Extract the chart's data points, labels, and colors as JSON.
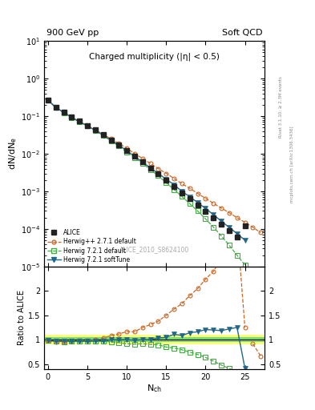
{
  "title_left": "900 GeV pp",
  "title_right": "Soft QCD",
  "main_title": "Charged multiplicity (η| < 0.5)",
  "main_title2": "Charged multiplicity (|η| < 0.5)",
  "ylabel_main": "dN/dNₑ",
  "ylabel_ratio": "Ratio to ALICE",
  "xlabel": "Nₙₕ",
  "watermark": "ALICE_2010_S8624100",
  "right_label": "Rivet 3.1.10; ≥ 2.3M events",
  "right_label2": "mcplots.cern.ch [arXiv:1306.3436]",
  "alice_x": [
    0,
    1,
    2,
    3,
    4,
    5,
    6,
    7,
    8,
    9,
    10,
    11,
    12,
    13,
    14,
    15,
    16,
    17,
    18,
    19,
    20,
    21,
    22,
    23,
    24,
    25
  ],
  "alice_y": [
    0.27,
    0.175,
    0.13,
    0.095,
    0.073,
    0.057,
    0.043,
    0.032,
    0.023,
    0.017,
    0.012,
    0.0086,
    0.006,
    0.0042,
    0.0029,
    0.002,
    0.00135,
    0.00092,
    0.00063,
    0.00043,
    0.00029,
    0.0002,
    0.000135,
    9e-05,
    6e-05,
    0.00012
  ],
  "hpp_x": [
    0,
    1,
    2,
    3,
    4,
    5,
    6,
    7,
    8,
    9,
    10,
    11,
    12,
    13,
    14,
    15,
    16,
    17,
    18,
    19,
    20,
    21,
    22,
    23,
    24,
    25,
    26,
    27
  ],
  "hpp_y": [
    0.265,
    0.168,
    0.125,
    0.092,
    0.072,
    0.056,
    0.043,
    0.033,
    0.025,
    0.019,
    0.014,
    0.01,
    0.0075,
    0.0055,
    0.004,
    0.003,
    0.0022,
    0.0016,
    0.0012,
    0.00088,
    0.00065,
    0.00048,
    0.00036,
    0.00027,
    0.0002,
    0.00015,
    0.00011,
    8e-05
  ],
  "h721_x": [
    0,
    1,
    2,
    3,
    4,
    5,
    6,
    7,
    8,
    9,
    10,
    11,
    12,
    13,
    14,
    15,
    16,
    17,
    18,
    19,
    20,
    21,
    22,
    23,
    24,
    25
  ],
  "h721_y": [
    0.265,
    0.17,
    0.125,
    0.092,
    0.071,
    0.055,
    0.042,
    0.031,
    0.022,
    0.016,
    0.011,
    0.0078,
    0.0055,
    0.0038,
    0.0026,
    0.0017,
    0.00112,
    0.00073,
    0.00047,
    0.0003,
    0.000185,
    0.000112,
    6.5e-05,
    3.7e-05,
    2e-05,
    1.1e-05
  ],
  "h721st_x": [
    0,
    1,
    2,
    3,
    4,
    5,
    6,
    7,
    8,
    9,
    10,
    11,
    12,
    13,
    14,
    15,
    16,
    17,
    18,
    19,
    20,
    21,
    22,
    23,
    24,
    25
  ],
  "h721st_y": [
    0.265,
    0.17,
    0.126,
    0.092,
    0.071,
    0.055,
    0.042,
    0.031,
    0.023,
    0.017,
    0.012,
    0.0085,
    0.006,
    0.0042,
    0.003,
    0.0021,
    0.0015,
    0.001,
    0.00072,
    0.0005,
    0.00035,
    0.00024,
    0.00016,
    0.00011,
    7.5e-05,
    5e-05
  ],
  "alice_color": "#222222",
  "hpp_color": "#cc6622",
  "h721_color": "#44aa44",
  "h721st_color": "#226688",
  "band_inner": 0.05,
  "band_outer": 0.1,
  "ylim_main": [
    1e-05,
    10
  ],
  "ylim_ratio": [
    0.4,
    2.5
  ],
  "xlim": [
    -0.5,
    27.5
  ]
}
